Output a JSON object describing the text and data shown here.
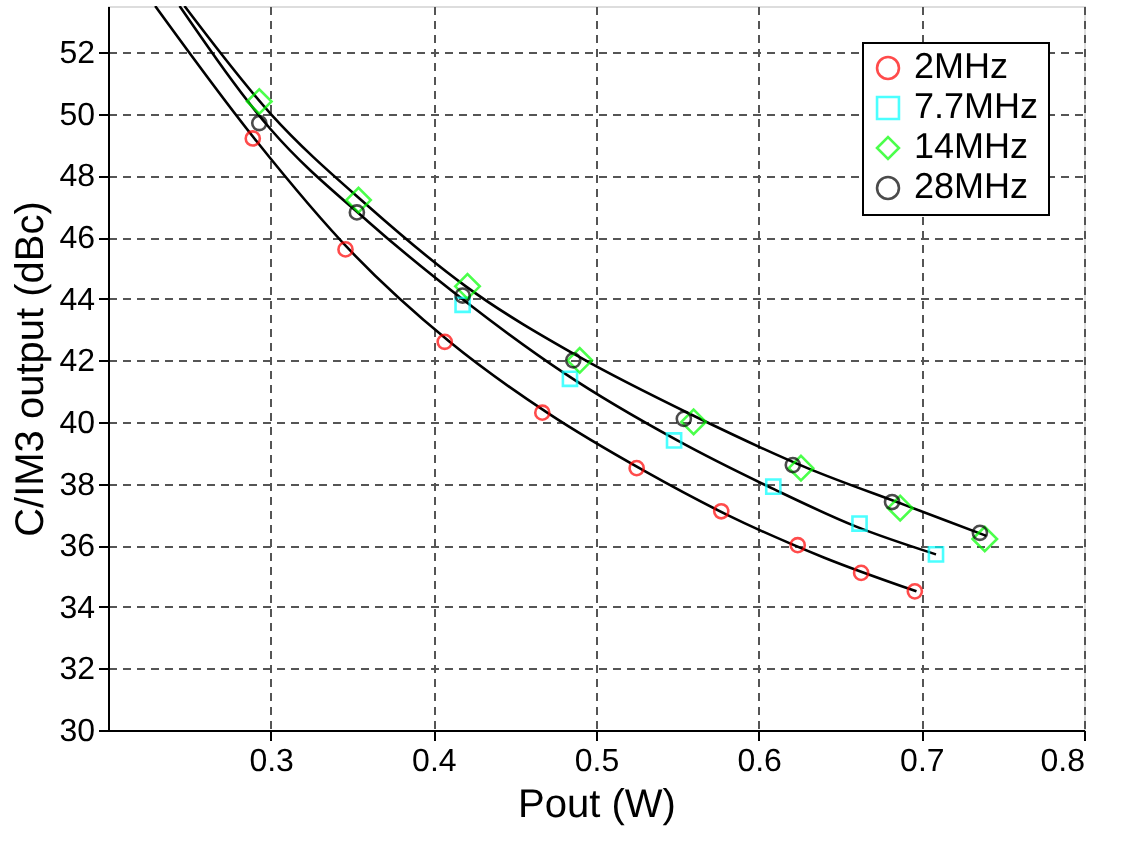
{
  "chart_data": {
    "type": "scatter",
    "xlabel": "Pout (W)",
    "ylabel": "C/IM3 output (dBc)",
    "xlim": [
      0.2,
      0.8
    ],
    "ylim": [
      30,
      53.5
    ],
    "xticks": [
      0.3,
      0.4,
      0.5,
      0.6,
      0.7,
      0.8
    ],
    "yticks": [
      30,
      32,
      34,
      36,
      38,
      40,
      42,
      44,
      46,
      48,
      50,
      52
    ],
    "grid": true,
    "legend": "top right",
    "series": [
      {
        "name": "2MHz",
        "color": "#ff0000",
        "marker": "circle",
        "x": [
          0.289,
          0.346,
          0.407,
          0.467,
          0.525,
          0.577,
          0.624,
          0.663,
          0.696
        ],
        "values": [
          49.2,
          45.6,
          42.6,
          40.3,
          38.5,
          37.1,
          36.0,
          35.1,
          34.5
        ]
      },
      {
        "name": "7.7MHz",
        "color": "#00ffff",
        "marker": "square",
        "x": [
          0.418,
          0.484,
          0.548,
          0.609,
          0.662,
          0.709
        ],
        "values": [
          43.8,
          41.4,
          39.4,
          37.9,
          36.7,
          35.7
        ]
      },
      {
        "name": "14MHz",
        "color": "#00ff00",
        "marker": "diamond",
        "x": [
          0.293,
          0.354,
          0.421,
          0.49,
          0.56,
          0.626,
          0.687,
          0.739
        ],
        "values": [
          50.4,
          47.2,
          44.4,
          42.0,
          40.0,
          38.5,
          37.2,
          36.2
        ]
      },
      {
        "name": "28MHz",
        "color": "#000000",
        "marker": "circle",
        "x": [
          0.293,
          0.353,
          0.418,
          0.486,
          0.554,
          0.621,
          0.682,
          0.736
        ],
        "values": [
          49.7,
          46.8,
          44.1,
          42.0,
          40.1,
          38.6,
          37.4,
          36.4
        ]
      },
      {
        "type": "line",
        "color": "#000000",
        "x": [
          0.229,
          0.29,
          0.35,
          0.41,
          0.47,
          0.53,
          0.58,
          0.64,
          0.697
        ],
        "values": [
          53.5,
          49.2,
          45.5,
          42.6,
          40.3,
          38.4,
          37.0,
          35.6,
          34.5
        ]
      },
      {
        "type": "line",
        "color": "#000000",
        "x": [
          0.244,
          0.3,
          0.36,
          0.42,
          0.48,
          0.55,
          0.61,
          0.66,
          0.709
        ],
        "values": [
          53.5,
          49.5,
          46.5,
          43.9,
          41.6,
          39.4,
          37.8,
          36.6,
          35.7
        ]
      },
      {
        "type": "line",
        "color": "#000000",
        "x": [
          0.247,
          0.3,
          0.36,
          0.42,
          0.49,
          0.56,
          0.63,
          0.69,
          0.74
        ],
        "values": [
          53.5,
          50.0,
          47.0,
          44.4,
          42.1,
          40.2,
          38.5,
          37.3,
          36.3
        ]
      }
    ]
  }
}
